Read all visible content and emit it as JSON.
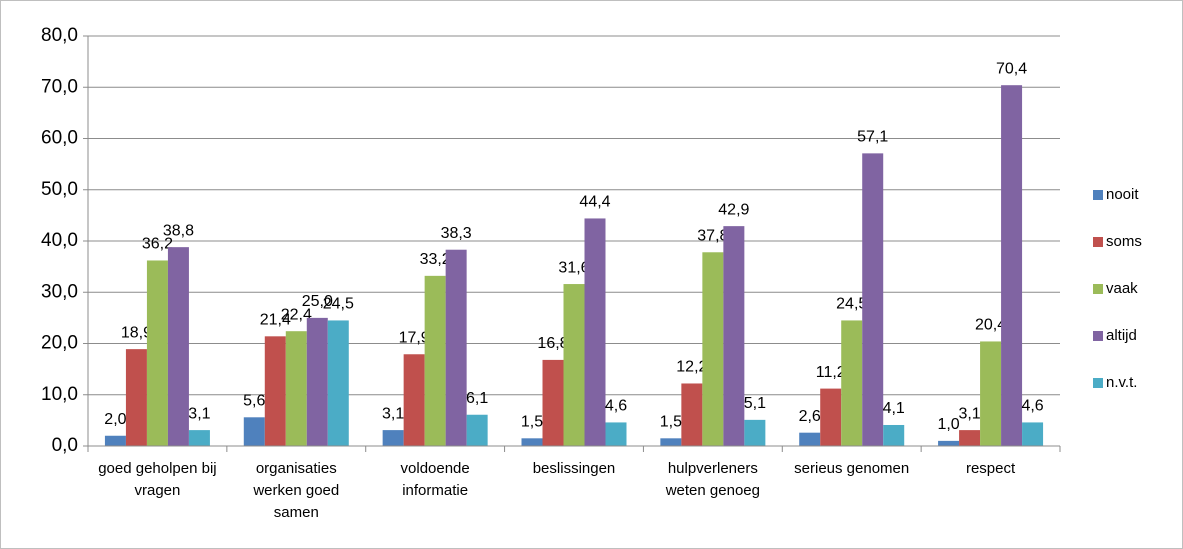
{
  "chart_data": {
    "type": "bar",
    "categories": [
      "goed geholpen bij vragen",
      "organisaties werken goed samen",
      "voldoende informatie",
      "beslissingen",
      "hulpverleners weten genoeg",
      "serieus genomen",
      "respect"
    ],
    "series": [
      {
        "name": "nooit",
        "color": "#4f81bd",
        "values": [
          2.0,
          5.6,
          3.1,
          1.5,
          1.5,
          2.6,
          1.0
        ],
        "value_labels": [
          "2,0",
          "5,6",
          "3,1",
          "1,5",
          "1,5",
          "2,6",
          "1,0"
        ]
      },
      {
        "name": "soms",
        "color": "#c0504d",
        "values": [
          18.9,
          21.4,
          17.9,
          16.8,
          12.2,
          11.2,
          3.1
        ],
        "value_labels": [
          "18,9",
          "21,4",
          "17,9",
          "16,8",
          "12,2",
          "11,2",
          "3,1"
        ]
      },
      {
        "name": "vaak",
        "color": "#9bbb59",
        "values": [
          36.2,
          22.4,
          33.2,
          31.6,
          37.8,
          24.5,
          20.4
        ],
        "value_labels": [
          "36,2",
          "22,4",
          "33,2",
          "31,6",
          "37,8",
          "24,5",
          "20,4"
        ]
      },
      {
        "name": "altijd",
        "color": "#8064a2",
        "values": [
          38.8,
          25.0,
          38.3,
          44.4,
          42.9,
          57.1,
          70.4
        ],
        "value_labels": [
          "38,8",
          "25,0",
          "38,3",
          "44,4",
          "42,9",
          "57,1",
          "70,4"
        ]
      },
      {
        "name": "n.v.t.",
        "color": "#4bacc6",
        "values": [
          3.1,
          24.5,
          6.1,
          4.6,
          5.1,
          4.1,
          4.6
        ],
        "value_labels": [
          "3,1",
          "24,5",
          "6,1",
          "4,6",
          "5,1",
          "4,1",
          "4,6"
        ]
      }
    ],
    "ylim": [
      0,
      80
    ],
    "yticks": [
      {
        "value": 0,
        "label": "0,0"
      },
      {
        "value": 10,
        "label": "10,0"
      },
      {
        "value": 20,
        "label": "20,0"
      },
      {
        "value": 30,
        "label": "30,0"
      },
      {
        "value": 40,
        "label": "40,0"
      },
      {
        "value": 50,
        "label": "50,0"
      },
      {
        "value": 60,
        "label": "60,0"
      },
      {
        "value": 70,
        "label": "70,0"
      },
      {
        "value": 80,
        "label": "80,0"
      }
    ],
    "grid": true,
    "legend": "right"
  }
}
